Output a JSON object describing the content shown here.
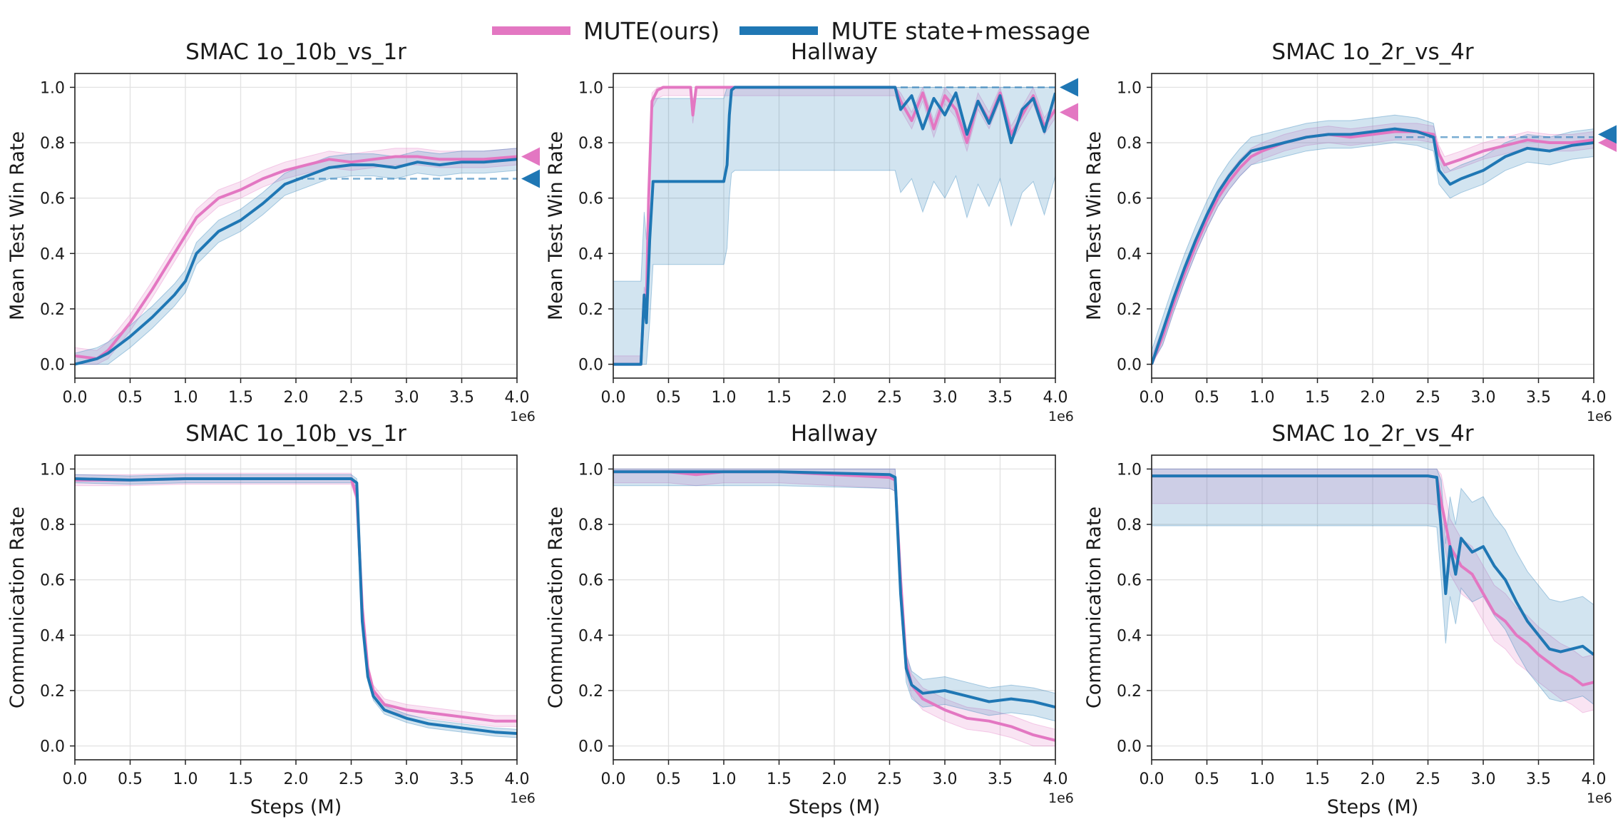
{
  "colors": {
    "pink": "#e377c2",
    "blue": "#1f77b4"
  },
  "legend": [
    {
      "label": "MUTE(ours)",
      "color": "#e377c2"
    },
    {
      "label": "MUTE state+message",
      "color": "#1f77b4"
    }
  ],
  "chart_data": [
    {
      "type": "line",
      "title": "SMAC 1o_10b_vs_1r",
      "xlabel": "",
      "ylabel": "Mean Test Win Rate",
      "x_offset_label": "1e6",
      "xlim": [
        0,
        4
      ],
      "ylim": [
        -0.05,
        1.05
      ],
      "xticks": [
        "0.0",
        "0.5",
        "1.0",
        "1.5",
        "2.0",
        "2.5",
        "3.0",
        "3.5",
        "4.0"
      ],
      "yticks": [
        "0.0",
        "0.2",
        "0.4",
        "0.6",
        "0.8",
        "1.0"
      ],
      "grid": true,
      "reference_lines": [
        {
          "y": 0.67,
          "x_from": 2.0,
          "color": "#1f77b4",
          "style": "dashed"
        }
      ],
      "end_markers": [
        {
          "series": "MUTE(ours)",
          "y": 0.75
        },
        {
          "series": "MUTE state+message",
          "y": 0.67
        }
      ],
      "series": [
        {
          "name": "MUTE(ours)",
          "color": "#e377c2",
          "band": 0.03,
          "x": [
            0,
            0.2,
            0.3,
            0.5,
            0.7,
            0.9,
            1.1,
            1.3,
            1.5,
            1.7,
            1.9,
            2.1,
            2.3,
            2.5,
            2.7,
            2.9,
            3.1,
            3.3,
            3.5,
            3.7,
            4.0
          ],
          "y": [
            0.03,
            0.02,
            0.05,
            0.15,
            0.27,
            0.4,
            0.53,
            0.6,
            0.63,
            0.67,
            0.7,
            0.72,
            0.74,
            0.73,
            0.74,
            0.75,
            0.75,
            0.74,
            0.74,
            0.74,
            0.75
          ]
        },
        {
          "name": "MUTE state+message",
          "color": "#1f77b4",
          "band": 0.04,
          "x": [
            0,
            0.2,
            0.3,
            0.5,
            0.7,
            0.9,
            1.0,
            1.1,
            1.3,
            1.5,
            1.7,
            1.9,
            2.1,
            2.3,
            2.5,
            2.7,
            2.9,
            3.1,
            3.3,
            3.5,
            3.7,
            4.0
          ],
          "y": [
            0.0,
            0.02,
            0.04,
            0.1,
            0.17,
            0.25,
            0.3,
            0.4,
            0.48,
            0.52,
            0.58,
            0.65,
            0.68,
            0.71,
            0.72,
            0.72,
            0.71,
            0.73,
            0.72,
            0.73,
            0.73,
            0.74
          ]
        }
      ]
    },
    {
      "type": "line",
      "title": "Hallway",
      "xlabel": "",
      "ylabel": "Mean Test Win Rate",
      "x_offset_label": "1e6",
      "xlim": [
        0,
        4
      ],
      "ylim": [
        -0.05,
        1.05
      ],
      "xticks": [
        "0.0",
        "0.5",
        "1.0",
        "1.5",
        "2.0",
        "2.5",
        "3.0",
        "3.5",
        "4.0"
      ],
      "yticks": [
        "0.0",
        "0.2",
        "0.4",
        "0.6",
        "0.8",
        "1.0"
      ],
      "grid": true,
      "reference_lines": [
        {
          "y": 1.0,
          "x_from": 2.6,
          "color": "#1f77b4",
          "style": "dashed"
        }
      ],
      "end_markers": [
        {
          "series": "MUTE(ours)",
          "y": 0.91
        },
        {
          "series": "MUTE state+message",
          "y": 1.0
        }
      ],
      "series": [
        {
          "name": "MUTE(ours)",
          "color": "#e377c2",
          "band": 0.03,
          "x": [
            0,
            0.25,
            0.28,
            0.3,
            0.32,
            0.35,
            0.4,
            0.45,
            0.5,
            0.7,
            0.72,
            0.75,
            1.0,
            1.5,
            2.0,
            2.55,
            2.6,
            2.7,
            2.8,
            2.9,
            3.0,
            3.1,
            3.2,
            3.3,
            3.4,
            3.5,
            3.6,
            3.7,
            3.8,
            3.9,
            4.0
          ],
          "y": [
            0,
            0,
            0.25,
            0.22,
            0.6,
            0.95,
            0.99,
            1.0,
            1.0,
            1.0,
            0.9,
            1.0,
            1.0,
            1.0,
            1.0,
            1.0,
            0.95,
            0.88,
            0.98,
            0.85,
            0.97,
            0.92,
            0.8,
            0.95,
            0.88,
            0.98,
            0.83,
            0.9,
            0.97,
            0.86,
            0.92
          ]
        },
        {
          "name": "MUTE state+message",
          "color": "#1f77b4",
          "band": 0.3,
          "x": [
            0,
            0.25,
            0.28,
            0.3,
            0.33,
            0.36,
            0.4,
            0.45,
            1.0,
            1.03,
            1.05,
            1.07,
            1.1,
            1.15,
            1.2,
            1.5,
            2.0,
            2.55,
            2.6,
            2.7,
            2.8,
            2.9,
            3.0,
            3.1,
            3.2,
            3.3,
            3.4,
            3.5,
            3.6,
            3.7,
            3.8,
            3.9,
            4.0
          ],
          "y": [
            0,
            0,
            0.25,
            0.15,
            0.45,
            0.66,
            0.66,
            0.66,
            0.66,
            0.72,
            0.9,
            0.99,
            1.0,
            1.0,
            1.0,
            1.0,
            1.0,
            1.0,
            0.92,
            0.97,
            0.85,
            0.96,
            0.9,
            0.98,
            0.83,
            0.95,
            0.87,
            0.97,
            0.8,
            0.92,
            0.96,
            0.84,
            0.98
          ]
        }
      ]
    },
    {
      "type": "line",
      "title": "SMAC 1o_2r_vs_4r",
      "xlabel": "",
      "ylabel": "Mean Test Win Rate",
      "x_offset_label": "1e6",
      "xlim": [
        0,
        4
      ],
      "ylim": [
        -0.05,
        1.05
      ],
      "xticks": [
        "0.0",
        "0.5",
        "1.0",
        "1.5",
        "2.0",
        "2.5",
        "3.0",
        "3.5",
        "4.0"
      ],
      "yticks": [
        "0.0",
        "0.2",
        "0.4",
        "0.6",
        "0.8",
        "1.0"
      ],
      "grid": true,
      "reference_lines": [
        {
          "y": 0.82,
          "x_from": 2.2,
          "color": "#1f77b4",
          "style": "dashed"
        }
      ],
      "end_markers": [
        {
          "series": "MUTE(ours)",
          "y": 0.8
        },
        {
          "series": "MUTE state+message",
          "y": 0.83
        }
      ],
      "series": [
        {
          "name": "MUTE(ours)",
          "color": "#e377c2",
          "band": 0.03,
          "x": [
            0,
            0.1,
            0.2,
            0.3,
            0.4,
            0.5,
            0.6,
            0.7,
            0.8,
            0.9,
            1.0,
            1.2,
            1.4,
            1.6,
            1.8,
            2.0,
            2.2,
            2.4,
            2.55,
            2.6,
            2.65,
            2.8,
            3.0,
            3.2,
            3.4,
            3.6,
            3.8,
            4.0
          ],
          "y": [
            0.0,
            0.1,
            0.22,
            0.33,
            0.43,
            0.52,
            0.6,
            0.66,
            0.71,
            0.75,
            0.77,
            0.8,
            0.82,
            0.83,
            0.82,
            0.83,
            0.84,
            0.84,
            0.83,
            0.76,
            0.72,
            0.74,
            0.77,
            0.79,
            0.81,
            0.8,
            0.8,
            0.81
          ]
        },
        {
          "name": "MUTE state+message",
          "color": "#1f77b4",
          "band": 0.05,
          "x": [
            0,
            0.1,
            0.2,
            0.3,
            0.4,
            0.5,
            0.6,
            0.7,
            0.8,
            0.9,
            1.0,
            1.2,
            1.4,
            1.6,
            1.8,
            2.0,
            2.2,
            2.4,
            2.55,
            2.6,
            2.7,
            2.8,
            3.0,
            3.2,
            3.4,
            3.6,
            3.8,
            4.0
          ],
          "y": [
            0.0,
            0.12,
            0.24,
            0.35,
            0.45,
            0.54,
            0.62,
            0.68,
            0.73,
            0.77,
            0.78,
            0.8,
            0.82,
            0.83,
            0.83,
            0.84,
            0.85,
            0.84,
            0.82,
            0.7,
            0.65,
            0.67,
            0.7,
            0.75,
            0.78,
            0.77,
            0.79,
            0.8
          ]
        }
      ]
    },
    {
      "type": "line",
      "title": "SMAC 1o_10b_vs_1r",
      "xlabel": "Steps (M)",
      "ylabel": "Communication Rate",
      "x_offset_label": "1e6",
      "xlim": [
        0,
        4
      ],
      "ylim": [
        -0.05,
        1.05
      ],
      "xticks": [
        "0.0",
        "0.5",
        "1.0",
        "1.5",
        "2.0",
        "2.5",
        "3.0",
        "3.5",
        "4.0"
      ],
      "yticks": [
        "0.0",
        "0.2",
        "0.4",
        "0.6",
        "0.8",
        "1.0"
      ],
      "grid": true,
      "series": [
        {
          "name": "MUTE(ours)",
          "color": "#e377c2",
          "band": 0.02,
          "x": [
            0,
            0.5,
            1.0,
            1.5,
            2.0,
            2.5,
            2.55,
            2.6,
            2.65,
            2.7,
            2.8,
            3.0,
            3.2,
            3.4,
            3.6,
            3.8,
            4.0
          ],
          "y": [
            0.96,
            0.96,
            0.965,
            0.965,
            0.965,
            0.965,
            0.9,
            0.5,
            0.28,
            0.2,
            0.15,
            0.13,
            0.12,
            0.11,
            0.1,
            0.09,
            0.09
          ]
        },
        {
          "name": "MUTE state+message",
          "color": "#1f77b4",
          "band": 0.015,
          "x": [
            0,
            0.5,
            1.0,
            1.5,
            2.0,
            2.5,
            2.55,
            2.6,
            2.65,
            2.7,
            2.8,
            3.0,
            3.2,
            3.4,
            3.6,
            3.8,
            4.0
          ],
          "y": [
            0.965,
            0.96,
            0.965,
            0.965,
            0.965,
            0.965,
            0.95,
            0.45,
            0.25,
            0.18,
            0.13,
            0.1,
            0.08,
            0.07,
            0.06,
            0.05,
            0.045
          ]
        }
      ]
    },
    {
      "type": "line",
      "title": "Hallway",
      "xlabel": "Steps (M)",
      "ylabel": "Communication Rate",
      "x_offset_label": "1e6",
      "xlim": [
        0,
        4
      ],
      "ylim": [
        -0.05,
        1.05
      ],
      "xticks": [
        "0.0",
        "0.5",
        "1.0",
        "1.5",
        "2.0",
        "2.5",
        "3.0",
        "3.5",
        "4.0"
      ],
      "yticks": [
        "0.0",
        "0.2",
        "0.4",
        "0.6",
        "0.8",
        "1.0"
      ],
      "grid": true,
      "series": [
        {
          "name": "MUTE(ours)",
          "color": "#e377c2",
          "band": 0.04,
          "x": [
            0,
            0.5,
            0.75,
            1.0,
            1.5,
            2.0,
            2.5,
            2.55,
            2.6,
            2.65,
            2.7,
            2.8,
            3.0,
            3.2,
            3.4,
            3.6,
            3.8,
            4.0
          ],
          "y": [
            0.99,
            0.99,
            0.98,
            0.99,
            0.99,
            0.98,
            0.97,
            0.96,
            0.6,
            0.3,
            0.22,
            0.17,
            0.13,
            0.1,
            0.09,
            0.07,
            0.04,
            0.02
          ]
        },
        {
          "name": "MUTE state+message",
          "color": "#1f77b4",
          "band": 0.05,
          "x": [
            0,
            0.5,
            1.0,
            1.5,
            2.0,
            2.5,
            2.55,
            2.6,
            2.65,
            2.7,
            2.8,
            3.0,
            3.2,
            3.4,
            3.6,
            3.8,
            4.0
          ],
          "y": [
            0.99,
            0.99,
            0.99,
            0.99,
            0.985,
            0.98,
            0.97,
            0.55,
            0.28,
            0.22,
            0.19,
            0.2,
            0.18,
            0.16,
            0.17,
            0.16,
            0.14
          ]
        }
      ]
    },
    {
      "type": "line",
      "title": "SMAC 1o_2r_vs_4r",
      "xlabel": "Steps (M)",
      "ylabel": "Communication Rate",
      "x_offset_label": "1e6",
      "xlim": [
        0,
        4
      ],
      "ylim": [
        -0.05,
        1.05
      ],
      "xticks": [
        "0.0",
        "0.5",
        "1.0",
        "1.5",
        "2.0",
        "2.5",
        "3.0",
        "3.5",
        "4.0"
      ],
      "yticks": [
        "0.0",
        "0.2",
        "0.4",
        "0.6",
        "0.8",
        "1.0"
      ],
      "grid": true,
      "series": [
        {
          "name": "MUTE(ours)",
          "color": "#e377c2",
          "band": 0.1,
          "x": [
            0,
            0.5,
            1.0,
            1.5,
            2.0,
            2.5,
            2.58,
            2.62,
            2.7,
            2.8,
            2.9,
            3.0,
            3.1,
            3.2,
            3.3,
            3.4,
            3.5,
            3.6,
            3.7,
            3.8,
            3.9,
            4.0
          ],
          "y": [
            0.975,
            0.975,
            0.975,
            0.975,
            0.975,
            0.975,
            0.97,
            0.88,
            0.72,
            0.65,
            0.62,
            0.55,
            0.48,
            0.45,
            0.4,
            0.37,
            0.33,
            0.3,
            0.27,
            0.25,
            0.22,
            0.23
          ]
        },
        {
          "name": "MUTE state+message",
          "color": "#1f77b4",
          "band": 0.18,
          "x": [
            0,
            0.5,
            1.0,
            1.5,
            2.0,
            2.5,
            2.58,
            2.62,
            2.66,
            2.7,
            2.75,
            2.8,
            2.9,
            3.0,
            3.1,
            3.2,
            3.3,
            3.4,
            3.5,
            3.6,
            3.7,
            3.8,
            3.9,
            4.0
          ],
          "y": [
            0.975,
            0.975,
            0.975,
            0.975,
            0.975,
            0.975,
            0.97,
            0.78,
            0.55,
            0.72,
            0.62,
            0.75,
            0.7,
            0.72,
            0.65,
            0.6,
            0.52,
            0.45,
            0.4,
            0.35,
            0.34,
            0.35,
            0.36,
            0.33
          ]
        }
      ]
    }
  ]
}
